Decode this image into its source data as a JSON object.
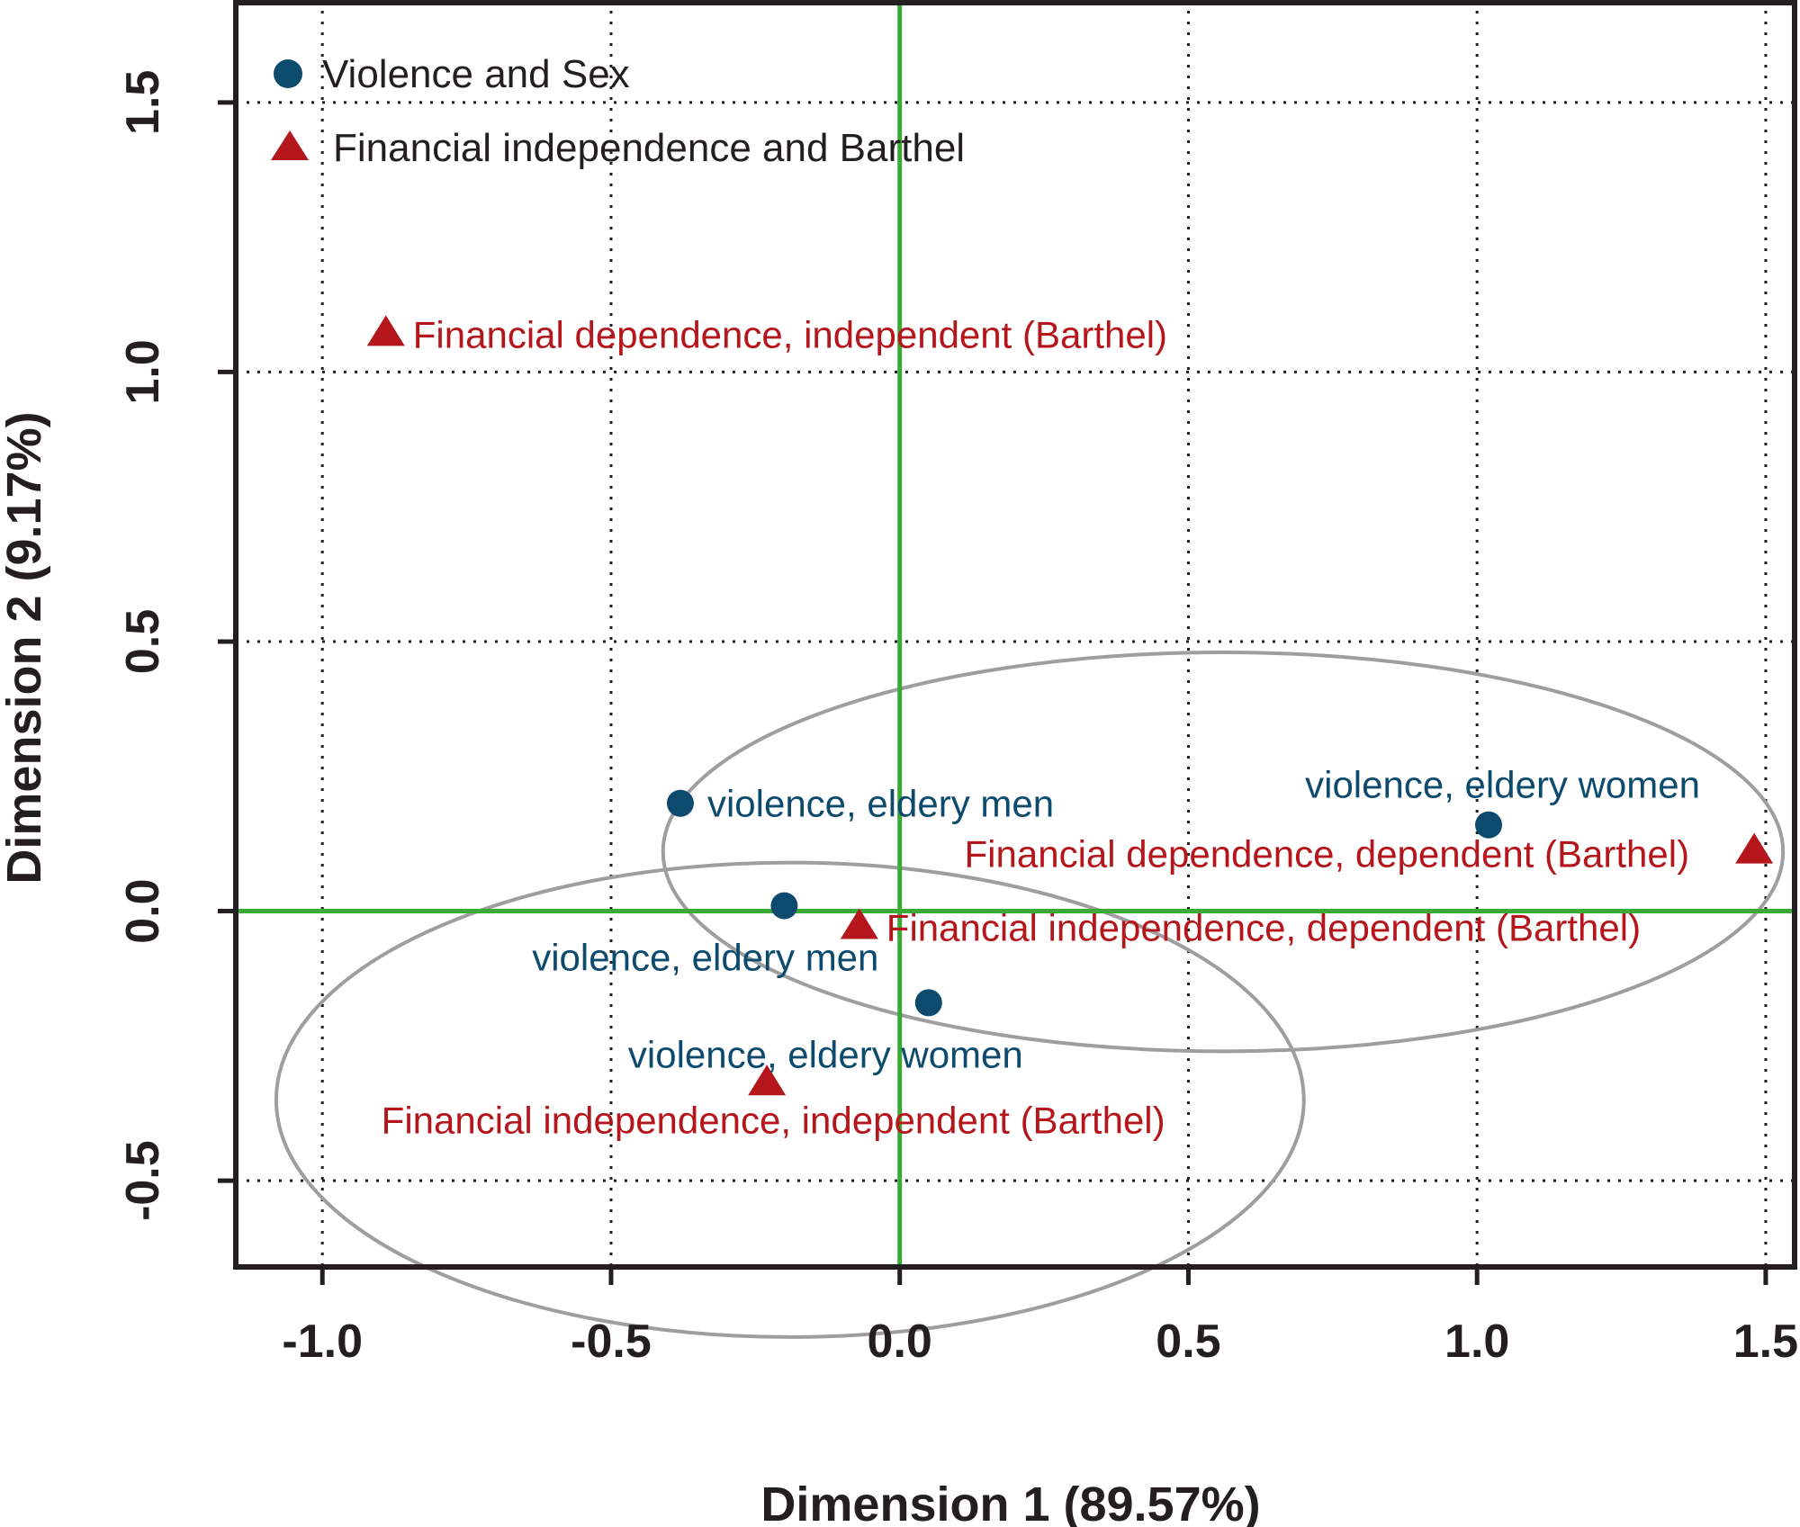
{
  "chart_data": {
    "type": "scatter",
    "xlabel": "Dimension 1 (89.57%)",
    "ylabel": "Dimension 2 (9.17%)",
    "xlim": [
      -1.15,
      1.55
    ],
    "ylim": [
      -0.66,
      1.69
    ],
    "x_ticks": [
      "-1.0",
      "-0.5",
      "0.0",
      "0.5",
      "1.0",
      "1.5"
    ],
    "y_ticks": [
      "-0.5",
      "0.0",
      "0.5",
      "1.0",
      "1.5"
    ],
    "grid": true,
    "reference_lines": {
      "x": 0,
      "y": 0,
      "color": "#3aaa35"
    },
    "legend": {
      "placement": "top-left",
      "entries": [
        {
          "label": "Violence and Sex",
          "marker": "circle",
          "color": "#0c4a6e"
        },
        {
          "label": "Financial independence and Barthel",
          "marker": "triangle",
          "color": "#b5161b"
        }
      ]
    },
    "series": [
      {
        "name": "Violence and Sex",
        "marker": "circle",
        "color": "#0c4a6e",
        "points": [
          {
            "x": -0.38,
            "y": 0.2,
            "label": "violence, eldery men",
            "label_anchor": "right"
          },
          {
            "x": -0.2,
            "y": 0.01,
            "label": "violence, eldery men",
            "label_anchor": "below-left"
          },
          {
            "x": 0.05,
            "y": -0.17,
            "label": "violence, eldery women",
            "label_anchor": "below-left"
          },
          {
            "x": 1.02,
            "y": 0.16,
            "label": "violence, eldery women",
            "label_anchor": "above-left"
          }
        ]
      },
      {
        "name": "Financial independence and Barthel",
        "marker": "triangle",
        "color": "#b5161b",
        "points": [
          {
            "x": -0.89,
            "y": 1.07,
            "label": "Financial dependence, independent (Barthel)",
            "label_anchor": "right"
          },
          {
            "x": -0.23,
            "y": -0.32,
            "label": "Financial independence, independent (Barthel)",
            "label_anchor": "below"
          },
          {
            "x": -0.07,
            "y": -0.03,
            "label": "Financial independence, dependent (Barthel)",
            "label_anchor": "right"
          },
          {
            "x": 1.48,
            "y": 0.11,
            "label": "Financial dependence, dependent (Barthel)",
            "label_anchor": "left"
          }
        ]
      }
    ],
    "ellipses": [
      {
        "cx": 0.56,
        "cy": 0.11,
        "rx": 0.97,
        "ry": 0.37,
        "color": "#9e9e9e"
      },
      {
        "cx": -0.19,
        "cy": -0.35,
        "rx": 0.89,
        "ry": 0.44,
        "color": "#9e9e9e"
      }
    ]
  }
}
